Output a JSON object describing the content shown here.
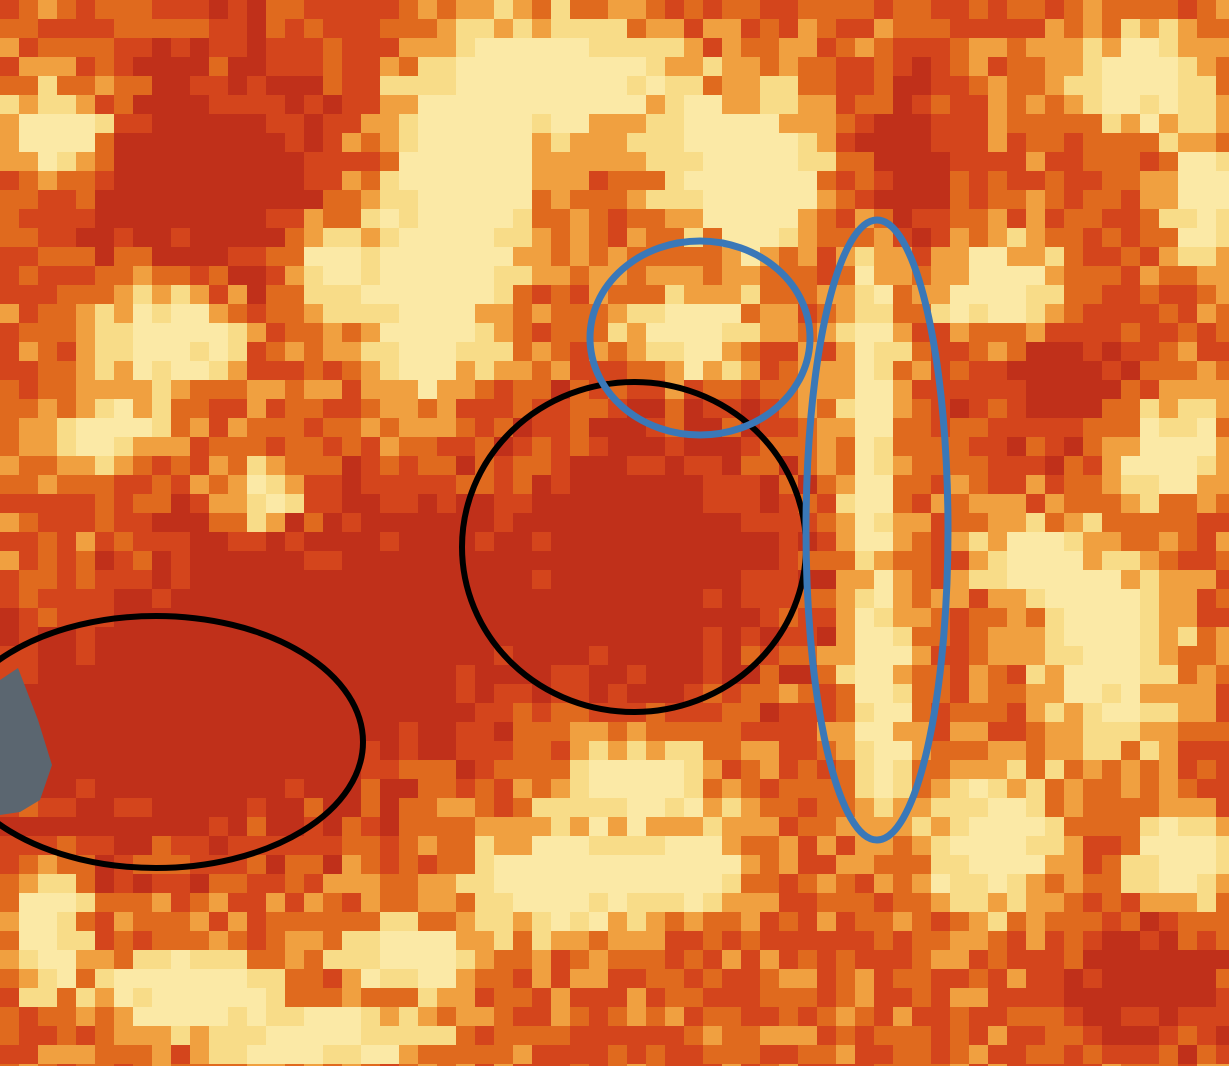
{
  "image": {
    "description_kind": "pixelated thermal-style heat map with hand-drawn ellipse annotations",
    "palette": {
      "low": "#c0301a",
      "mid_low": "#d4451c",
      "mid": "#e06a1e",
      "mid_high": "#f0a040",
      "high": "#f8dc88",
      "peak": "#fbe9a6"
    },
    "annotation_colors": {
      "blue_ellipse": "#3a78b8",
      "black_ellipse": "#000000",
      "gray_shape": "#5b6670"
    }
  },
  "annotations": {
    "blue_ellipses": [
      {
        "name": "blue-ellipse-small"
      },
      {
        "name": "blue-ellipse-tall"
      }
    ],
    "black_ellipses": [
      {
        "name": "black-ellipse-center"
      },
      {
        "name": "black-ellipse-left"
      }
    ],
    "gray_shape": {
      "name": "gray-pointer-shape"
    }
  }
}
